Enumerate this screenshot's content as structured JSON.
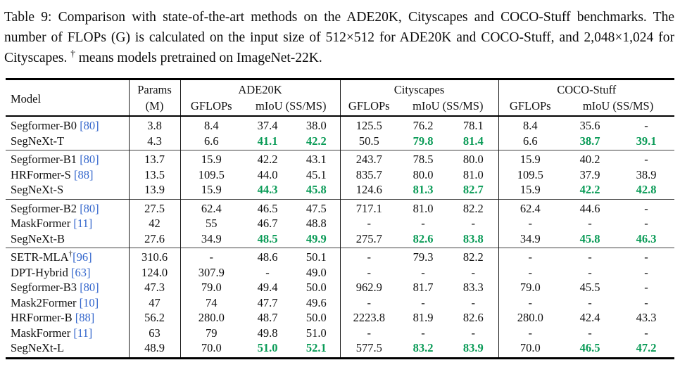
{
  "caption": {
    "part1": "Table 9: Comparison with state-of-the-art methods on the ADE20K, Cityscapes and COCO-Stuff benchmarks. The number of FLOPs (G) is calculated on the input size of 512×512 for ADE20K and COCO-Stuff, and 2,048×1,024 for Cityscapes. ",
    "dagger": "†",
    "part2": " means models pretrained on ImageNet-22K."
  },
  "colors": {
    "highlight_green": "#0a9b57",
    "citation_blue": "#3366cc"
  },
  "table": {
    "header": {
      "model": "Model",
      "params_line1": "Params",
      "params_line2": "(M)",
      "groups": [
        {
          "name": "ADE20K",
          "gflops": "GFLOPs",
          "miou": "mIoU (SS/MS)"
        },
        {
          "name": "Cityscapes",
          "gflops": "GFLOPs",
          "miou": "mIoU (SS/MS)"
        },
        {
          "name": "COCO-Stuff",
          "gflops": "GFLOPs",
          "miou": "mIoU (SS/MS)"
        }
      ]
    },
    "value_columns": [
      "params-m",
      "ade20k-gflops",
      "ade20k-miou-ss",
      "ade20k-miou-ms",
      "cityscapes-gflops",
      "cityscapes-miou-ss",
      "cityscapes-miou-ms",
      "cocostuff-gflops",
      "cocostuff-miou-ss",
      "cocostuff-miou-ms"
    ],
    "groups": [
      {
        "rows": [
          {
            "model": "Segformer-B0",
            "sup": "",
            "cite": "[80]",
            "cite_space": true,
            "highlight": false,
            "values": [
              "3.8",
              "8.4",
              "37.4",
              "38.0",
              "125.5",
              "76.2",
              "78.1",
              "8.4",
              "35.6",
              "-"
            ]
          },
          {
            "model": "SegNeXt-T",
            "sup": "",
            "cite": "",
            "cite_space": false,
            "highlight": true,
            "values": [
              "4.3",
              "6.6",
              "41.1",
              "42.2",
              "50.5",
              "79.8",
              "81.4",
              "6.6",
              "38.7",
              "39.1"
            ]
          }
        ]
      },
      {
        "rows": [
          {
            "model": "Segformer-B1",
            "sup": "",
            "cite": "[80]",
            "cite_space": true,
            "highlight": false,
            "values": [
              "13.7",
              "15.9",
              "42.2",
              "43.1",
              "243.7",
              "78.5",
              "80.0",
              "15.9",
              "40.2",
              "-"
            ]
          },
          {
            "model": "HRFormer-S",
            "sup": "",
            "cite": "[88]",
            "cite_space": true,
            "highlight": false,
            "values": [
              "13.5",
              "109.5",
              "44.0",
              "45.1",
              "835.7",
              "80.0",
              "81.0",
              "109.5",
              "37.9",
              "38.9"
            ]
          },
          {
            "model": "SegNeXt-S",
            "sup": "",
            "cite": "",
            "cite_space": false,
            "highlight": true,
            "values": [
              "13.9",
              "15.9",
              "44.3",
              "45.8",
              "124.6",
              "81.3",
              "82.7",
              "15.9",
              "42.2",
              "42.8"
            ]
          }
        ]
      },
      {
        "rows": [
          {
            "model": "Segformer-B2",
            "sup": "",
            "cite": "[80]",
            "cite_space": true,
            "highlight": false,
            "values": [
              "27.5",
              "62.4",
              "46.5",
              "47.5",
              "717.1",
              "81.0",
              "82.2",
              "62.4",
              "44.6",
              "-"
            ]
          },
          {
            "model": "MaskFormer",
            "sup": "",
            "cite": "[11]",
            "cite_space": true,
            "highlight": false,
            "values": [
              "42",
              "55",
              "46.7",
              "48.8",
              "-",
              "-",
              "-",
              "-",
              "-",
              "-"
            ]
          },
          {
            "model": "SegNeXt-B",
            "sup": "",
            "cite": "",
            "cite_space": false,
            "highlight": true,
            "values": [
              "27.6",
              "34.9",
              "48.5",
              "49.9",
              "275.7",
              "82.6",
              "83.8",
              "34.9",
              "45.8",
              "46.3"
            ]
          }
        ]
      },
      {
        "rows": [
          {
            "model": "SETR-MLA",
            "sup": "†",
            "cite": "[96]",
            "cite_space": false,
            "highlight": false,
            "values": [
              "310.6",
              "-",
              "48.6",
              "50.1",
              "-",
              "79.3",
              "82.2",
              "-",
              "-",
              "-"
            ]
          },
          {
            "model": "DPT-Hybrid",
            "sup": "",
            "cite": "[63]",
            "cite_space": true,
            "highlight": false,
            "values": [
              "124.0",
              "307.9",
              "-",
              "49.0",
              "-",
              "-",
              "-",
              "-",
              "-",
              "-"
            ]
          },
          {
            "model": "Segformer-B3",
            "sup": "",
            "cite": "[80]",
            "cite_space": true,
            "highlight": false,
            "values": [
              "47.3",
              "79.0",
              "49.4",
              "50.0",
              "962.9",
              "81.7",
              "83.3",
              "79.0",
              "45.5",
              "-"
            ]
          },
          {
            "model": "Mask2Former",
            "sup": "",
            "cite": "[10]",
            "cite_space": true,
            "highlight": false,
            "values": [
              "47",
              "74",
              "47.7",
              "49.6",
              "-",
              "-",
              "-",
              "-",
              "-",
              "-"
            ]
          },
          {
            "model": "HRFormer-B",
            "sup": "",
            "cite": "[88]",
            "cite_space": true,
            "highlight": false,
            "values": [
              "56.2",
              "280.0",
              "48.7",
              "50.0",
              "2223.8",
              "81.9",
              "82.6",
              "280.0",
              "42.4",
              "43.3"
            ]
          },
          {
            "model": "MaskFormer",
            "sup": "",
            "cite": "[11]",
            "cite_space": true,
            "highlight": false,
            "values": [
              "63",
              "79",
              "49.8",
              "51.0",
              "-",
              "-",
              "-",
              "-",
              "-",
              "-"
            ]
          },
          {
            "model": "SegNeXt-L",
            "sup": "",
            "cite": "",
            "cite_space": false,
            "highlight": true,
            "values": [
              "48.9",
              "70.0",
              "51.0",
              "52.1",
              "577.5",
              "83.2",
              "83.9",
              "70.0",
              "46.5",
              "47.2"
            ]
          }
        ]
      }
    ]
  }
}
